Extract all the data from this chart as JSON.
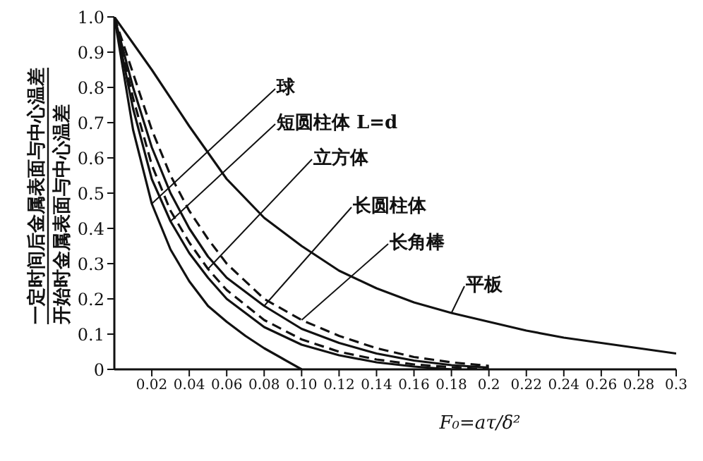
{
  "chart_data": {
    "type": "line",
    "xlabel": "F₀=aτ/δ²",
    "ylabel": "一定时间后金属表面与中心温差",
    "annotations": [
      "开始时金属表面与中心温差",
      {
        "text": "球",
        "x": 0.02,
        "y": 0.47
      },
      {
        "text": "短圆柱体 L=d",
        "x": 0.03,
        "y": 0.42
      },
      {
        "text": "立方体",
        "x": 0.05,
        "y": 0.285
      },
      {
        "text": "长圆柱体",
        "x": 0.08,
        "y": 0.18
      },
      {
        "text": "长角棒",
        "x": 0.1,
        "y": 0.14
      },
      {
        "text": "平板",
        "x": 0.18,
        "y": 0.16
      }
    ],
    "xlim": [
      0,
      0.3
    ],
    "ylim": [
      0,
      1
    ],
    "xticks": [
      0.02,
      0.04,
      0.06,
      0.08,
      {
        "value": 0.1,
        "label": "0.10"
      },
      0.12,
      0.14,
      0.16,
      0.18,
      0.2,
      0.22,
      0.24,
      0.26,
      0.28,
      0.3
    ],
    "yticks": [
      0,
      0.1,
      0.2,
      0.3,
      0.4,
      0.5,
      0.6,
      0.7,
      0.8,
      0.9,
      {
        "value": 1,
        "label": "1.0"
      }
    ],
    "grid": false,
    "marker": "none",
    "series": [
      {
        "color": "#111111",
        "line_style": "solid",
        "x": [
          0,
          0.01,
          0.02,
          0.03,
          0.04,
          0.05,
          0.06,
          0.07,
          0.08,
          0.09,
          0.1
        ],
        "values": [
          1.0,
          0.68,
          0.47,
          0.34,
          0.25,
          0.18,
          0.135,
          0.095,
          0.06,
          0.03,
          0.0
        ]
      },
      {
        "color": "#111111",
        "line_style": "solid",
        "x": [
          0,
          0.01,
          0.02,
          0.03,
          0.04,
          0.05,
          0.06,
          0.08,
          0.1,
          0.12,
          0.14,
          0.16,
          0.18
        ],
        "values": [
          1.0,
          0.74,
          0.54,
          0.42,
          0.33,
          0.26,
          0.2,
          0.12,
          0.07,
          0.04,
          0.02,
          0.008,
          0.0
        ]
      },
      {
        "color": "#111111",
        "line_style": "dashed",
        "x": [
          0,
          0.01,
          0.02,
          0.03,
          0.04,
          0.05,
          0.06,
          0.08,
          0.1,
          0.12,
          0.14,
          0.16,
          0.18,
          0.2
        ],
        "values": [
          1.0,
          0.77,
          0.58,
          0.45,
          0.36,
          0.285,
          0.225,
          0.14,
          0.085,
          0.05,
          0.028,
          0.014,
          0.006,
          0.0
        ]
      },
      {
        "color": "#111111",
        "line_style": "solid",
        "x": [
          0,
          0.01,
          0.02,
          0.03,
          0.04,
          0.05,
          0.06,
          0.08,
          0.1,
          0.12,
          0.14,
          0.16,
          0.18,
          0.2
        ],
        "values": [
          1.0,
          0.8,
          0.63,
          0.5,
          0.4,
          0.32,
          0.26,
          0.18,
          0.115,
          0.075,
          0.045,
          0.025,
          0.012,
          0.005
        ]
      },
      {
        "color": "#111111",
        "line_style": "dashed",
        "x": [
          0,
          0.01,
          0.02,
          0.03,
          0.04,
          0.05,
          0.06,
          0.08,
          0.1,
          0.12,
          0.14,
          0.16,
          0.18,
          0.2
        ],
        "values": [
          1.0,
          0.84,
          0.68,
          0.55,
          0.45,
          0.37,
          0.3,
          0.2,
          0.14,
          0.095,
          0.06,
          0.035,
          0.02,
          0.01
        ]
      },
      {
        "color": "#111111",
        "line_style": "solid",
        "x": [
          0,
          0.02,
          0.04,
          0.06,
          0.08,
          0.1,
          0.12,
          0.14,
          0.16,
          0.18,
          0.2,
          0.22,
          0.24,
          0.26,
          0.28,
          0.3
        ],
        "values": [
          1.0,
          0.85,
          0.69,
          0.54,
          0.43,
          0.35,
          0.28,
          0.23,
          0.19,
          0.16,
          0.135,
          0.11,
          0.09,
          0.075,
          0.06,
          0.045
        ]
      }
    ]
  }
}
